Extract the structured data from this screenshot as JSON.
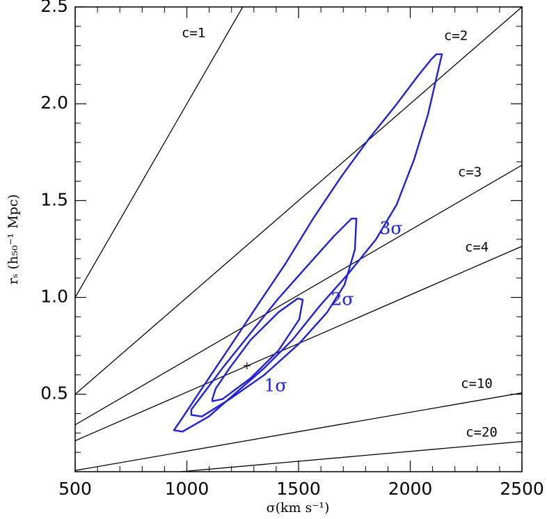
{
  "chart_data": {
    "type": "line",
    "xlabel": "σ(km s⁻¹)",
    "ylabel": "rₛ (h₅₀⁻¹ Mpc)",
    "xlim": [
      500,
      2500
    ],
    "ylim": [
      0.1,
      2.5
    ],
    "xticks": [
      500,
      1000,
      1500,
      2000,
      2500
    ],
    "yticks": [
      {
        "value": 0.5,
        "label": "0.5"
      },
      {
        "value": 1.0,
        "label": "1.0"
      },
      1.5,
      {
        "value": 2.0,
        "label": "2.0"
      },
      2.5
    ],
    "xminorticks": [
      600,
      700,
      800,
      900,
      1100,
      1200,
      1300,
      1400,
      1600,
      1700,
      1800,
      1900,
      2100,
      2200,
      2300,
      2400
    ],
    "yminorticks": [
      0.2,
      0.3,
      0.4,
      0.6,
      0.7,
      0.8,
      0.9,
      1.1,
      1.2,
      1.3,
      1.4,
      1.6,
      1.7,
      1.8,
      1.9,
      2.1,
      2.2,
      2.3,
      2.4
    ],
    "series": [
      {
        "name": "c=1",
        "color": "#000000",
        "x": [
          500,
          1250
        ],
        "values": [
          1.0,
          2.5
        ]
      },
      {
        "name": "c=2",
        "color": "#000000",
        "x": [
          500,
          2500
        ],
        "values": [
          0.5,
          2.5
        ]
      },
      {
        "name": "c=3",
        "color": "#000000",
        "x": [
          500,
          2500
        ],
        "values": [
          0.342,
          1.683
        ]
      },
      {
        "name": "c=4",
        "color": "#000000",
        "x": [
          500,
          2500
        ],
        "values": [
          0.26,
          1.264
        ]
      },
      {
        "name": "c=10",
        "color": "#000000",
        "x": [
          500,
          2500
        ],
        "values": [
          0.106,
          0.507
        ]
      },
      {
        "name": "c=20",
        "color": "#000000",
        "x": [
          973,
          2500
        ],
        "values": [
          0.1,
          0.256
        ]
      },
      {
        "name": "3σ",
        "color": "#1f1fe0",
        "closed": true,
        "x": [
          942,
          980,
          1098,
          1223,
          1347,
          1472,
          1597,
          1721,
          1846,
          1939,
          2017,
          2079,
          2126,
          2142,
          2117,
          2095,
          2033,
          1939,
          1815,
          1690,
          1565,
          1441,
          1316,
          1192,
          1067,
          974
        ],
        "values": [
          0.314,
          0.307,
          0.385,
          0.511,
          0.636,
          0.78,
          0.959,
          1.12,
          1.299,
          1.479,
          1.712,
          1.944,
          2.177,
          2.256,
          2.256,
          2.231,
          2.142,
          1.998,
          1.819,
          1.622,
          1.407,
          1.174,
          0.959,
          0.744,
          0.529,
          0.368
        ]
      },
      {
        "name": "2σ",
        "color": "#1f1fe0",
        "closed": true,
        "x": [
          1020,
          1067,
          1192,
          1347,
          1503,
          1628,
          1706,
          1752,
          1759,
          1737,
          1659,
          1534,
          1410,
          1285,
          1160,
          1067,
          1020
        ],
        "values": [
          0.393,
          0.385,
          0.475,
          0.6,
          0.762,
          0.923,
          1.066,
          1.246,
          1.407,
          1.407,
          1.317,
          1.156,
          0.995,
          0.816,
          0.636,
          0.493,
          0.421
        ]
      },
      {
        "name": "1σ",
        "color": "#1f1fe0",
        "closed": true,
        "x": [
          1114,
          1160,
          1285,
          1410,
          1503,
          1519,
          1497,
          1410,
          1285,
          1192,
          1129,
          1114
        ],
        "values": [
          0.464,
          0.475,
          0.583,
          0.726,
          0.887,
          0.988,
          0.995,
          0.923,
          0.78,
          0.636,
          0.529,
          0.475
        ]
      },
      {
        "color": "#000000",
        "marker": "+",
        "x": [
          1269
        ],
        "values": [
          0.647
        ]
      }
    ]
  }
}
